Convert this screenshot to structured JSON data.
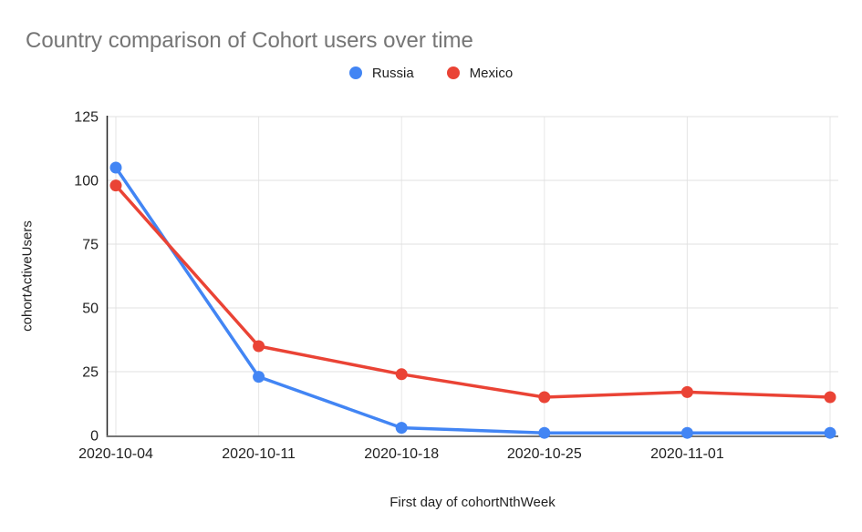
{
  "chart_data": {
    "type": "line",
    "title": "Country comparison of Cohort users over time",
    "xlabel": "First day of cohortNthWeek",
    "ylabel": "cohortActiveUsers",
    "x_tick_labels": [
      "2020-10-04",
      "2020-10-11",
      "2020-10-18",
      "2020-10-25",
      "2020-11-01",
      ""
    ],
    "y_ticks": [
      0,
      25,
      50,
      75,
      100,
      125
    ],
    "ylim": [
      0,
      125
    ],
    "grid": true,
    "legend_position": "top",
    "series": [
      {
        "name": "Russia",
        "color": "#4285F4",
        "values": [
          105,
          23,
          3,
          1,
          1,
          1
        ]
      },
      {
        "name": "Mexico",
        "color": "#EA4335",
        "values": [
          98,
          35,
          24,
          15,
          17,
          15
        ]
      }
    ]
  },
  "colors": {
    "background": "#ffffff",
    "title_text": "#757575",
    "axis_text": "#1f1f1f",
    "gridline_h": "#e0e0e0",
    "gridline_v": "#e6e6e6",
    "y_axis_line": "#212121",
    "x_axis_line": "#757575"
  }
}
